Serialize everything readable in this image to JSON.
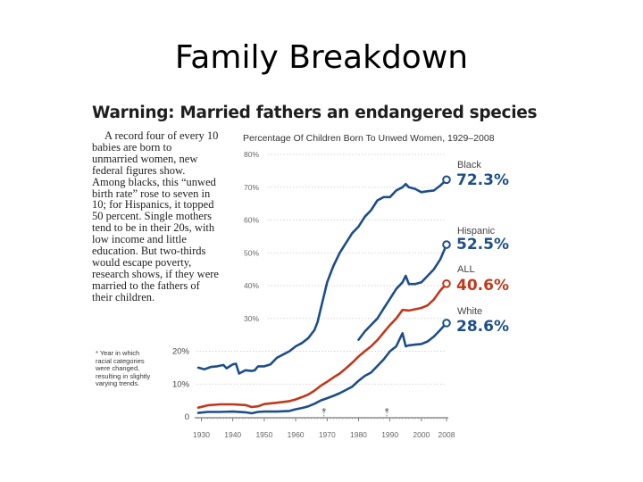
{
  "slide": {
    "title": "Family Breakdown"
  },
  "article": {
    "headline": "Warning: Married fathers an endangered species",
    "body": "A record four of every 10 babies are born to unmarried women, new federal figures show. Among blacks, this “unwed birth rate” rose to seven in 10; for Hispanics, it topped 50 percent. Single mothers tend to be in their 20s, with low income and little education. But two-thirds would escape poverty, research shows, if they were married to the fathers of their children.",
    "footnote": "* Year in which racial categories were changed, resulting in slightly varying trends."
  },
  "colors": {
    "blue": "#1d4e89",
    "red": "#c0391b",
    "grid": "#c8c8c8",
    "axis": "#555555"
  },
  "chart_data": {
    "type": "line",
    "title": "Percentage Of Children Born To Unwed Women, 1929–2008",
    "xlabel": "",
    "ylabel": "",
    "xlim": [
      1929,
      2008
    ],
    "ylim": [
      0,
      80
    ],
    "x_ticks": [
      {
        "value": 1930,
        "label": "1930"
      },
      {
        "value": 1940,
        "label": "1940"
      },
      {
        "value": 1950,
        "label": "1950"
      },
      {
        "value": 1960,
        "label": "1960"
      },
      {
        "value": 1970,
        "label": "1970"
      },
      {
        "value": 1980,
        "label": "1980"
      },
      {
        "value": 1990,
        "label": "1990"
      },
      {
        "value": 2000,
        "label": "2000"
      },
      {
        "value": 2008,
        "label": "2008"
      }
    ],
    "y_ticks": [
      {
        "value": 0,
        "label": "0"
      },
      {
        "value": 10,
        "label": "10%"
      },
      {
        "value": 20,
        "label": "20%"
      },
      {
        "value": 30,
        "label": "30%"
      },
      {
        "value": 40,
        "label": "40%"
      },
      {
        "value": 50,
        "label": "50%"
      },
      {
        "value": 60,
        "label": "60%"
      },
      {
        "value": 70,
        "label": "70%"
      },
      {
        "value": 80,
        "label": "80%"
      }
    ],
    "asterisk_years": [
      1969,
      1989
    ],
    "asterisk_label": "*",
    "series": [
      {
        "name": "Black",
        "value_label": "72.3%",
        "color": "#1d4e89",
        "segments": [
          [
            [
              1929,
              15.0
            ],
            [
              1931,
              14.5
            ],
            [
              1933,
              15.2
            ],
            [
              1935,
              15.4
            ],
            [
              1937,
              15.8
            ],
            [
              1938,
              14.8
            ],
            [
              1939,
              15.4
            ],
            [
              1940,
              16.0
            ],
            [
              1941,
              16.2
            ],
            [
              1942,
              13.2
            ],
            [
              1944,
              14.2
            ],
            [
              1946,
              14.0
            ],
            [
              1947,
              14.2
            ],
            [
              1948,
              15.4
            ],
            [
              1950,
              15.4
            ],
            [
              1952,
              16.0
            ],
            [
              1954,
              18.0
            ],
            [
              1956,
              19.0
            ],
            [
              1958,
              20.0
            ],
            [
              1960,
              21.5
            ],
            [
              1962,
              22.5
            ],
            [
              1964,
              24.0
            ],
            [
              1966,
              26.5
            ],
            [
              1967,
              29.0
            ],
            [
              1968,
              33.0
            ],
            [
              1969,
              37.0
            ],
            [
              1970,
              41.0
            ],
            [
              1972,
              46.0
            ],
            [
              1974,
              50.0
            ],
            [
              1976,
              53.0
            ],
            [
              1978,
              56.0
            ],
            [
              1980,
              58.0
            ],
            [
              1982,
              61.0
            ],
            [
              1984,
              63.0
            ],
            [
              1986,
              66.0
            ],
            [
              1988,
              67.0
            ],
            [
              1990,
              67.0
            ],
            [
              1992,
              69.0
            ],
            [
              1994,
              70.0
            ],
            [
              1995,
              71.0
            ],
            [
              1996,
              70.0
            ],
            [
              1998,
              69.5
            ],
            [
              2000,
              68.5
            ],
            [
              2002,
              68.8
            ],
            [
              2004,
              69.0
            ],
            [
              2006,
              70.5
            ],
            [
              2008,
              72.3
            ]
          ]
        ]
      },
      {
        "name": "Hispanic",
        "value_label": "52.5%",
        "color": "#1d4e89",
        "segments": [
          [
            [
              1980,
              23.5
            ],
            [
              1982,
              26.0
            ],
            [
              1984,
              28.0
            ],
            [
              1986,
              30.0
            ],
            [
              1988,
              33.0
            ],
            [
              1990,
              36.0
            ],
            [
              1992,
              39.0
            ],
            [
              1994,
              41.0
            ],
            [
              1995,
              43.0
            ],
            [
              1996,
              40.5
            ],
            [
              1998,
              40.5
            ],
            [
              2000,
              41.0
            ],
            [
              2002,
              43.0
            ],
            [
              2004,
              45.0
            ],
            [
              2006,
              48.0
            ],
            [
              2008,
              52.5
            ]
          ]
        ]
      },
      {
        "name": "ALL",
        "value_label": "40.6%",
        "color": "#c0391b",
        "segments": [
          [
            [
              1929,
              2.8
            ],
            [
              1932,
              3.5
            ],
            [
              1936,
              3.8
            ],
            [
              1940,
              3.8
            ],
            [
              1944,
              3.6
            ],
            [
              1946,
              3.0
            ],
            [
              1948,
              3.2
            ],
            [
              1950,
              3.9
            ],
            [
              1954,
              4.3
            ],
            [
              1958,
              4.8
            ],
            [
              1960,
              5.3
            ],
            [
              1962,
              6.0
            ],
            [
              1964,
              6.8
            ],
            [
              1966,
              8.0
            ],
            [
              1968,
              9.5
            ],
            [
              1970,
              10.7
            ],
            [
              1972,
              12.0
            ],
            [
              1974,
              13.2
            ],
            [
              1976,
              14.8
            ],
            [
              1978,
              16.5
            ],
            [
              1980,
              18.4
            ],
            [
              1982,
              20.0
            ],
            [
              1984,
              21.5
            ],
            [
              1986,
              23.4
            ],
            [
              1988,
              25.7
            ],
            [
              1990,
              28.0
            ],
            [
              1992,
              30.0
            ],
            [
              1994,
              32.6
            ],
            [
              1996,
              32.4
            ],
            [
              1998,
              32.8
            ],
            [
              2000,
              33.2
            ],
            [
              2002,
              34.0
            ],
            [
              2004,
              35.8
            ],
            [
              2006,
              38.5
            ],
            [
              2008,
              40.6
            ]
          ]
        ]
      },
      {
        "name": "White",
        "value_label": "28.6%",
        "color": "#1d4e89",
        "segments": [
          [
            [
              1929,
              1.2
            ],
            [
              1932,
              1.5
            ],
            [
              1936,
              1.5
            ],
            [
              1940,
              1.6
            ],
            [
              1944,
              1.4
            ],
            [
              1946,
              1.1
            ],
            [
              1948,
              1.5
            ],
            [
              1950,
              1.6
            ],
            [
              1954,
              1.6
            ],
            [
              1958,
              1.8
            ],
            [
              1960,
              2.3
            ],
            [
              1962,
              2.7
            ],
            [
              1964,
              3.2
            ],
            [
              1966,
              4.0
            ],
            [
              1968,
              5.0
            ],
            [
              1970,
              5.7
            ],
            [
              1972,
              6.4
            ],
            [
              1974,
              7.2
            ],
            [
              1976,
              8.2
            ],
            [
              1978,
              9.2
            ],
            [
              1980,
              11.0
            ],
            [
              1982,
              12.5
            ],
            [
              1984,
              13.5
            ],
            [
              1986,
              15.5
            ],
            [
              1988,
              17.5
            ],
            [
              1990,
              20.0
            ],
            [
              1992,
              21.5
            ],
            [
              1993,
              23.5
            ],
            [
              1994,
              25.5
            ],
            [
              1995,
              21.5
            ],
            [
              1996,
              21.8
            ],
            [
              1998,
              22.0
            ],
            [
              2000,
              22.2
            ],
            [
              2002,
              23.0
            ],
            [
              2004,
              24.5
            ],
            [
              2006,
              26.5
            ],
            [
              2008,
              28.6
            ]
          ]
        ]
      }
    ]
  }
}
